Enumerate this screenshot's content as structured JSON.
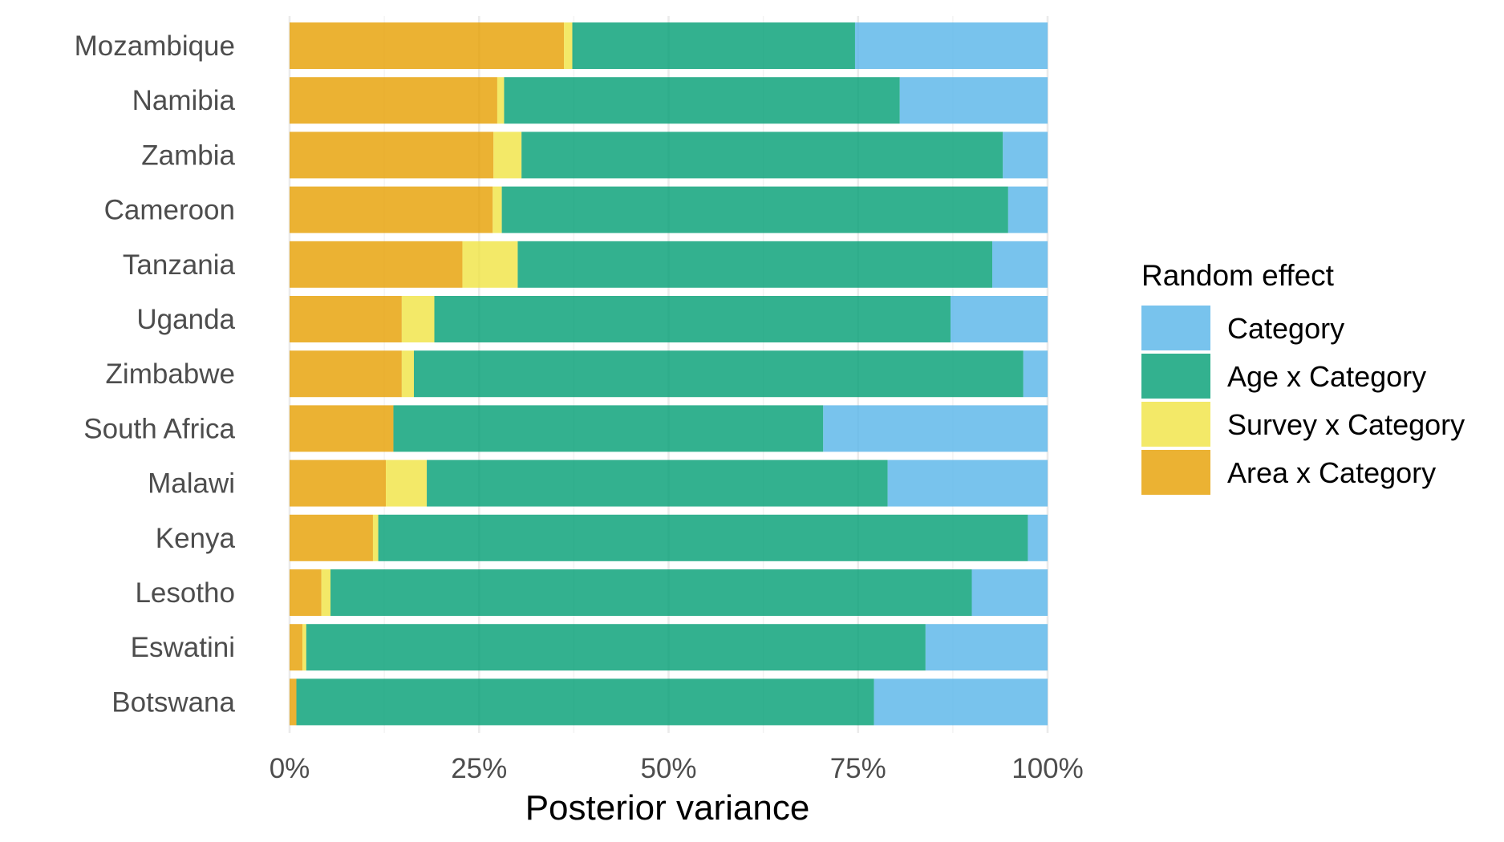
{
  "chart_data": {
    "type": "bar",
    "orientation": "horizontal",
    "stacked": true,
    "normalized": true,
    "xlabel": "Posterior variance",
    "ylabel": "",
    "xlim": [
      0,
      1
    ],
    "x_ticks": [
      0,
      0.25,
      0.5,
      0.75,
      1
    ],
    "x_tick_labels": [
      "0%",
      "25%",
      "50%",
      "75%",
      "100%"
    ],
    "grid": true,
    "legend": {
      "title": "Random effect",
      "position": "right"
    },
    "categories": [
      "Mozambique",
      "Namibia",
      "Zambia",
      "Cameroon",
      "Tanzania",
      "Uganda",
      "Zimbabwe",
      "South Africa",
      "Malawi",
      "Kenya",
      "Lesotho",
      "Eswatini",
      "Botswana"
    ],
    "series": [
      {
        "name": "Area x Category",
        "color": "#E69F00",
        "values": [
          0.362,
          0.274,
          0.269,
          0.268,
          0.228,
          0.148,
          0.148,
          0.137,
          0.127,
          0.11,
          0.042,
          0.017,
          0.009
        ]
      },
      {
        "name": "Survey x Category",
        "color": "#F0E442",
        "values": [
          0.011,
          0.009,
          0.037,
          0.012,
          0.073,
          0.043,
          0.016,
          0.0,
          0.054,
          0.007,
          0.012,
          0.005,
          0.0
        ]
      },
      {
        "name": "Age x Category",
        "color": "#009E73",
        "values": [
          0.373,
          0.522,
          0.635,
          0.668,
          0.626,
          0.681,
          0.804,
          0.567,
          0.608,
          0.857,
          0.846,
          0.817,
          0.762
        ]
      },
      {
        "name": "Category",
        "color": "#56B4E9",
        "values": [
          0.254,
          0.195,
          0.059,
          0.052,
          0.073,
          0.128,
          0.032,
          0.296,
          0.211,
          0.026,
          0.1,
          0.161,
          0.229
        ]
      }
    ],
    "legend_order": [
      "Category",
      "Age x Category",
      "Survey x Category",
      "Area x Category"
    ]
  }
}
